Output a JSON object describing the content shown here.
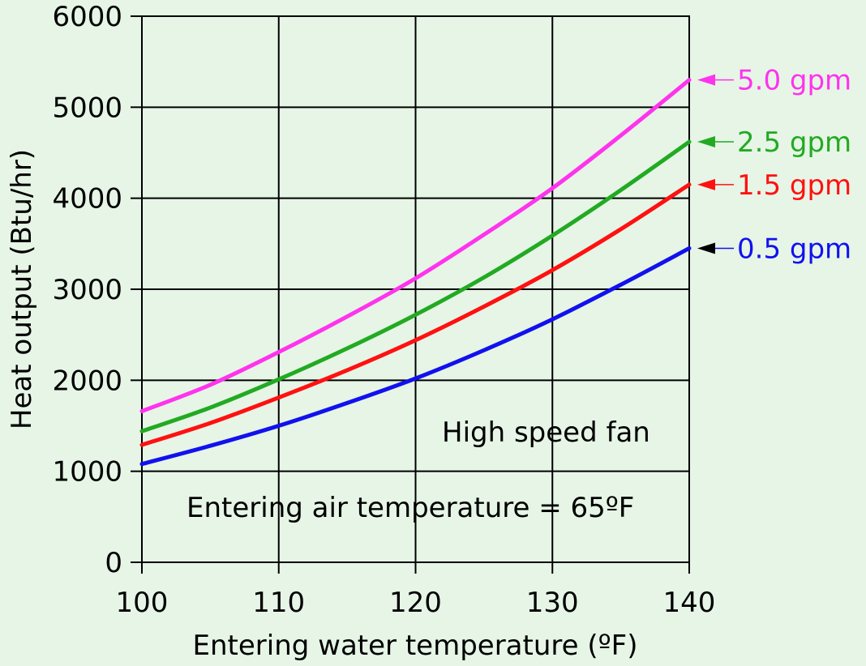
{
  "chart_data": {
    "type": "line",
    "xlabel": "Entering water temperature  (ºF)",
    "ylabel": "Heat output (Btu/hr)",
    "xlim": [
      100,
      140
    ],
    "ylim": [
      0,
      6000
    ],
    "x_ticks": [
      "100",
      "110",
      "120",
      "130",
      "140"
    ],
    "y_ticks": [
      "0",
      "1000",
      "2000",
      "3000",
      "4000",
      "5000",
      "6000"
    ],
    "grid": true,
    "x": [
      100,
      105,
      110,
      115,
      120,
      125,
      130,
      135,
      140
    ],
    "series": [
      {
        "name": "5.0 gpm",
        "color": "#ff33ee",
        "values": [
          1660,
          1950,
          2310,
          2700,
          3120,
          3600,
          4110,
          4690,
          5300
        ]
      },
      {
        "name": "2.5 gpm",
        "color": "#22aa22",
        "values": [
          1440,
          1700,
          2010,
          2350,
          2720,
          3130,
          3590,
          4090,
          4620
        ]
      },
      {
        "name": "1.5 gpm",
        "color": "#ff1111",
        "values": [
          1290,
          1530,
          1810,
          2110,
          2440,
          2810,
          3210,
          3660,
          4150
        ]
      },
      {
        "name": "0.5 gpm",
        "color": "#1111ee",
        "values": [
          1080,
          1280,
          1500,
          1750,
          2020,
          2330,
          2670,
          3050,
          3450
        ]
      }
    ],
    "annotations": [
      "High speed fan",
      "Entering air temperature = 65ºF"
    ],
    "legend_placement": "right"
  }
}
